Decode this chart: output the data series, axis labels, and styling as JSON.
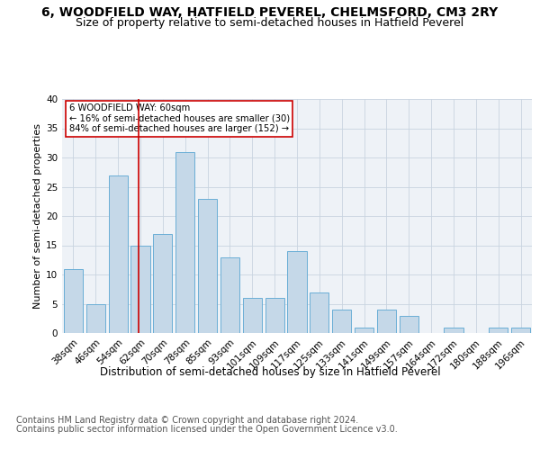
{
  "title1": "6, WOODFIELD WAY, HATFIELD PEVEREL, CHELMSFORD, CM3 2RY",
  "title2": "Size of property relative to semi-detached houses in Hatfield Peverel",
  "xlabel": "Distribution of semi-detached houses by size in Hatfield Peverel",
  "ylabel": "Number of semi-detached properties",
  "categories": [
    "38sqm",
    "46sqm",
    "54sqm",
    "62sqm",
    "70sqm",
    "78sqm",
    "85sqm",
    "93sqm",
    "101sqm",
    "109sqm",
    "117sqm",
    "125sqm",
    "133sqm",
    "141sqm",
    "149sqm",
    "157sqm",
    "164sqm",
    "172sqm",
    "180sqm",
    "188sqm",
    "196sqm"
  ],
  "values": [
    11,
    5,
    27,
    15,
    17,
    31,
    23,
    13,
    6,
    6,
    14,
    7,
    4,
    1,
    4,
    3,
    0,
    1,
    0,
    1,
    1
  ],
  "bar_color": "#c5d8e8",
  "bar_edge_color": "#6aaed6",
  "highlight_label": "6 WOODFIELD WAY: 60sqm",
  "annotation_smaller": "← 16% of semi-detached houses are smaller (30)",
  "annotation_larger": "84% of semi-detached houses are larger (152) →",
  "vline_x": 2.925,
  "vline_color": "#cc0000",
  "annotation_box_edge": "#cc0000",
  "ylim": [
    0,
    40
  ],
  "yticks": [
    0,
    5,
    10,
    15,
    20,
    25,
    30,
    35,
    40
  ],
  "footer1": "Contains HM Land Registry data © Crown copyright and database right 2024.",
  "footer2": "Contains public sector information licensed under the Open Government Licence v3.0.",
  "background_color": "#eef2f7",
  "grid_color": "#c8d4e0",
  "title1_fontsize": 10,
  "title2_fontsize": 9,
  "xlabel_fontsize": 8.5,
  "ylabel_fontsize": 8,
  "tick_fontsize": 7.5,
  "footer_fontsize": 7
}
